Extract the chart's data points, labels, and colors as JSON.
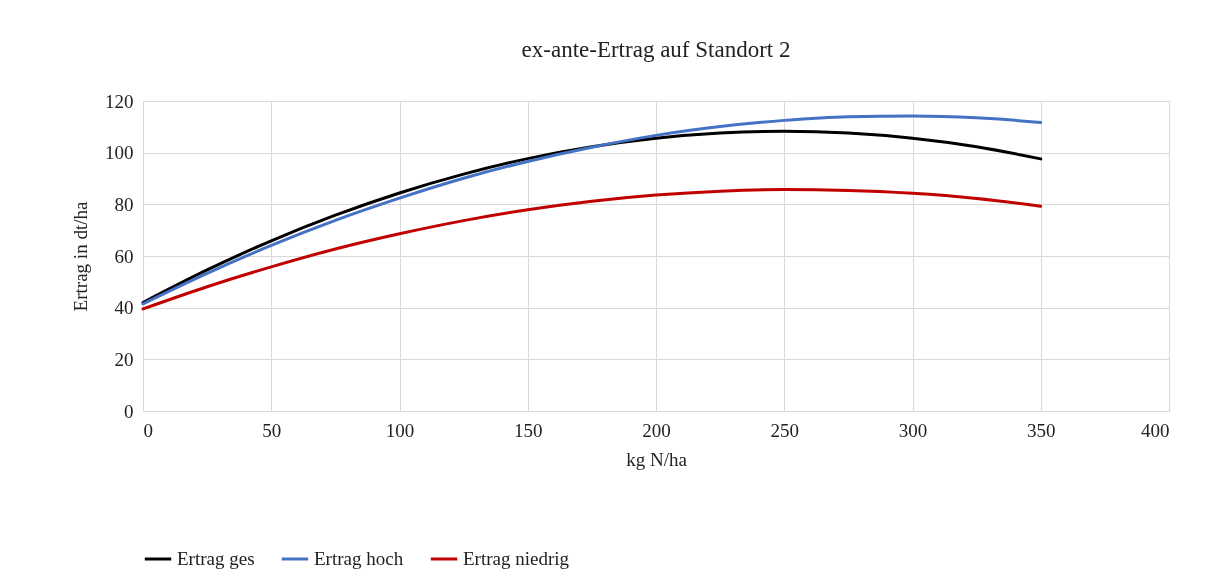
{
  "chart_data": {
    "type": "line",
    "title": "ex-ante-Ertrag auf Standort 2",
    "xlabel": "kg N/ha",
    "ylabel": "Ertrag in dt/ha",
    "x": [
      0,
      25,
      50,
      75,
      100,
      125,
      150,
      175,
      200,
      225,
      250,
      275,
      300,
      325,
      350
    ],
    "series": [
      {
        "name": "Ertrag ges",
        "color": "#000000",
        "values": [
          42,
          54.6,
          65.9,
          75.8,
          84.4,
          91.7,
          97.7,
          102.3,
          105.6,
          107.6,
          108.3,
          107.6,
          105.6,
          102.3,
          97.6
        ]
      },
      {
        "name": "Ertrag hoch",
        "color": "#4472c4",
        "values": [
          41.5,
          53.3,
          64.1,
          73.8,
          82.4,
          90.1,
          96.6,
          102.1,
          106.7,
          110.1,
          112.5,
          113.9,
          114.2,
          113.5,
          111.7
        ]
      },
      {
        "name": "Ertrag niedrig",
        "color": "#c00000",
        "values": [
          39.5,
          48.1,
          55.8,
          62.7,
          68.6,
          73.7,
          77.9,
          81.2,
          83.6,
          85.1,
          85.7,
          85.4,
          84.3,
          82.3,
          79.3
        ]
      }
    ],
    "xlim": [
      0,
      400
    ],
    "xticks": [
      0,
      50,
      100,
      150,
      200,
      250,
      300,
      350,
      400
    ],
    "ylim": [
      0,
      120
    ],
    "yticks": [
      0,
      20,
      40,
      60,
      80,
      100,
      120
    ],
    "grid": true,
    "legend": "bottom",
    "marker": "none",
    "line_style": "solid"
  }
}
